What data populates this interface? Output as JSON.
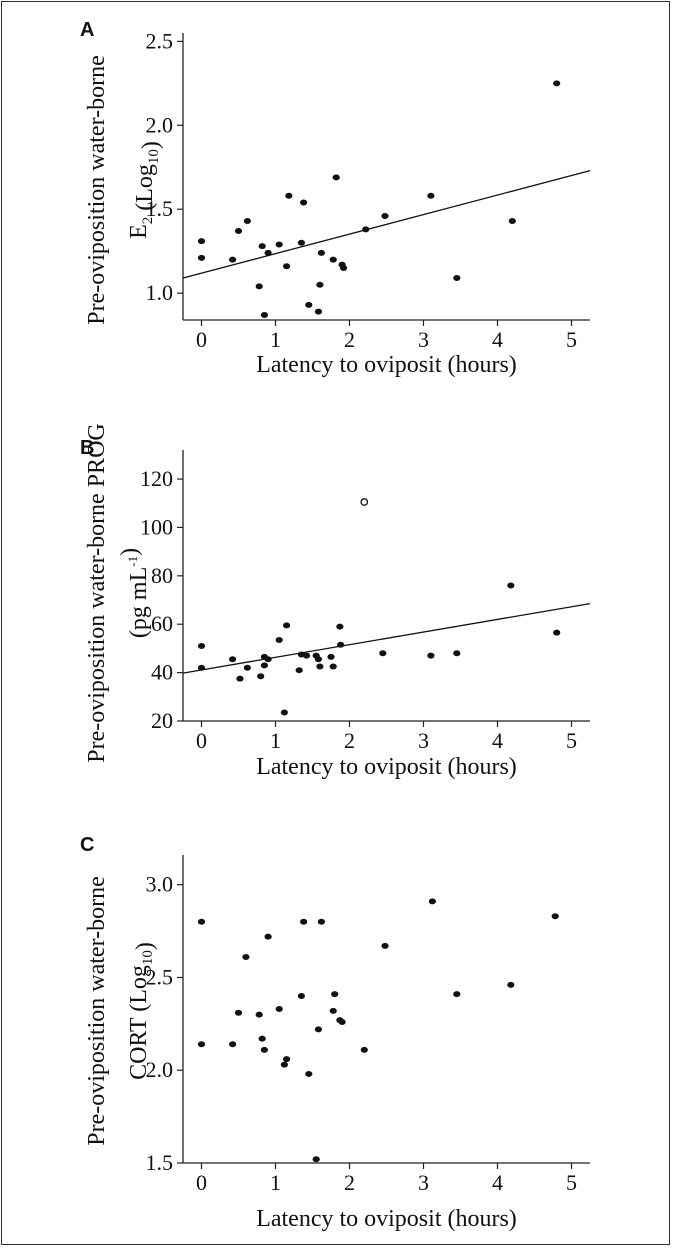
{
  "chart_data": [
    {
      "type": "scatter",
      "panel": "A",
      "xlabel": "Latency to oviposit (hours)",
      "ylabel": "Pre-oviposition water-borne",
      "ylabel_line2": {
        "base": "E",
        "sub1": "2",
        "mid": " (Log",
        "sub2": "10",
        "end": ")"
      },
      "xlim": [
        -0.25,
        5.25
      ],
      "ylim": [
        0.84,
        2.55
      ],
      "x_ticks": [
        0,
        1,
        2,
        3,
        4,
        5
      ],
      "y_ticks": [
        1.0,
        1.5,
        2.0,
        2.5
      ],
      "y_tick_labels": [
        "1.0",
        "1.5",
        "2.0",
        "2.5"
      ],
      "grid": false,
      "points": [
        [
          0.0,
          1.31
        ],
        [
          0.0,
          1.21
        ],
        [
          0.42,
          1.2
        ],
        [
          0.5,
          1.37
        ],
        [
          0.62,
          1.43
        ],
        [
          0.78,
          1.04
        ],
        [
          0.82,
          1.28
        ],
        [
          0.85,
          0.87
        ],
        [
          0.9,
          1.24
        ],
        [
          1.05,
          1.29
        ],
        [
          1.15,
          1.16
        ],
        [
          1.18,
          1.58
        ],
        [
          1.35,
          1.3
        ],
        [
          1.38,
          1.54
        ],
        [
          1.45,
          0.93
        ],
        [
          1.58,
          0.89
        ],
        [
          1.6,
          1.05
        ],
        [
          1.62,
          1.24
        ],
        [
          1.78,
          1.2
        ],
        [
          1.82,
          1.69
        ],
        [
          1.9,
          1.17
        ],
        [
          1.92,
          1.15
        ],
        [
          2.22,
          1.38
        ],
        [
          2.48,
          1.46
        ],
        [
          3.1,
          1.58
        ],
        [
          3.45,
          1.09
        ],
        [
          4.2,
          1.43
        ],
        [
          4.8,
          2.25
        ]
      ],
      "open_points": [],
      "trendline": {
        "x1": -0.25,
        "y1": 1.09,
        "x2": 5.25,
        "y2": 1.73
      }
    },
    {
      "type": "scatter",
      "panel": "B",
      "xlabel": "Latency to oviposit (hours)",
      "ylabel": "Pre-oviposition water-borne PROG",
      "ylabel_line2": {
        "base": "(pg mL",
        "sup": "-1",
        "end": ")"
      },
      "xlim": [
        -0.25,
        5.25
      ],
      "ylim": [
        20,
        132
      ],
      "x_ticks": [
        0,
        1,
        2,
        3,
        4,
        5
      ],
      "y_ticks": [
        20,
        40,
        60,
        80,
        100,
        120
      ],
      "y_tick_labels": [
        "20",
        "40",
        "60",
        "80",
        "100",
        "120"
      ],
      "grid": false,
      "points": [
        [
          0.0,
          51
        ],
        [
          0.0,
          42
        ],
        [
          0.42,
          45.5
        ],
        [
          0.52,
          37.5
        ],
        [
          0.62,
          42
        ],
        [
          0.8,
          38.5
        ],
        [
          0.85,
          43
        ],
        [
          0.85,
          46.5
        ],
        [
          0.9,
          45.5
        ],
        [
          1.05,
          53.5
        ],
        [
          1.12,
          23.5
        ],
        [
          1.15,
          59.5
        ],
        [
          1.32,
          41
        ],
        [
          1.35,
          47.5
        ],
        [
          1.42,
          47
        ],
        [
          1.55,
          47
        ],
        [
          1.58,
          45.5
        ],
        [
          1.6,
          42.5
        ],
        [
          1.75,
          46.5
        ],
        [
          1.78,
          42.5
        ],
        [
          1.87,
          59
        ],
        [
          1.88,
          51.5
        ],
        [
          2.45,
          48
        ],
        [
          3.1,
          47
        ],
        [
          3.45,
          48
        ],
        [
          4.18,
          76
        ],
        [
          4.8,
          56.5
        ]
      ],
      "open_points": [
        [
          2.2,
          110.5
        ]
      ],
      "trendline": {
        "x1": -0.25,
        "y1": 39.8,
        "x2": 5.25,
        "y2": 68.5
      }
    },
    {
      "type": "scatter",
      "panel": "C",
      "xlabel": "Latency to oviposit (hours)",
      "ylabel": "Pre-oviposition water-borne",
      "ylabel_line2": {
        "base": "CORT (Log",
        "sub2": "10",
        "end": ")"
      },
      "xlim": [
        -0.25,
        5.25
      ],
      "ylim": [
        1.5,
        3.16
      ],
      "x_ticks": [
        0,
        1,
        2,
        3,
        4,
        5
      ],
      "y_ticks": [
        1.5,
        2.0,
        2.5,
        3.0
      ],
      "y_tick_labels": [
        "1.5",
        "2.0",
        "2.5",
        "3.0"
      ],
      "grid": false,
      "points": [
        [
          0.0,
          2.8
        ],
        [
          0.0,
          2.14
        ],
        [
          0.42,
          2.14
        ],
        [
          0.5,
          2.31
        ],
        [
          0.6,
          2.61
        ],
        [
          0.78,
          2.3
        ],
        [
          0.82,
          2.17
        ],
        [
          0.85,
          2.11
        ],
        [
          0.9,
          2.72
        ],
        [
          1.05,
          2.33
        ],
        [
          1.12,
          2.03
        ],
        [
          1.15,
          2.06
        ],
        [
          1.35,
          2.4
        ],
        [
          1.38,
          2.8
        ],
        [
          1.45,
          1.98
        ],
        [
          1.55,
          1.52
        ],
        [
          1.58,
          2.22
        ],
        [
          1.62,
          2.8
        ],
        [
          1.78,
          2.32
        ],
        [
          1.8,
          2.41
        ],
        [
          1.87,
          2.27
        ],
        [
          1.9,
          2.26
        ],
        [
          2.2,
          2.11
        ],
        [
          2.48,
          2.67
        ],
        [
          3.12,
          2.91
        ],
        [
          3.45,
          2.41
        ],
        [
          4.18,
          2.46
        ],
        [
          4.78,
          2.83
        ]
      ],
      "open_points": [],
      "trendline": null
    }
  ]
}
